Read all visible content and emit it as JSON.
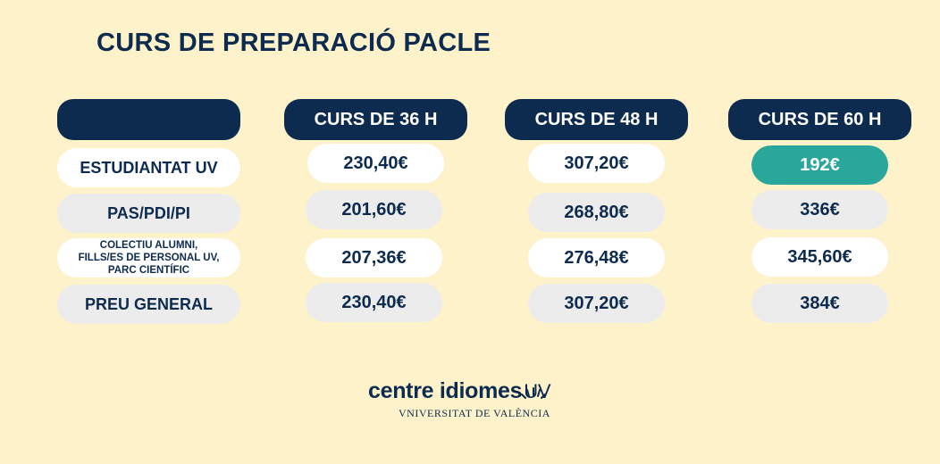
{
  "title": "CURS DE PREPARACIÓ PACLE",
  "columns": [
    "CURS DE 36 H",
    "CURS DE 48 H",
    "CURS DE 60 H"
  ],
  "rows": [
    {
      "label": "ESTUDIANTAT UV",
      "prices": [
        "230,40€",
        "307,20€",
        "192€"
      ]
    },
    {
      "label": "PAS/PDI/PI",
      "prices": [
        "201,60€",
        "268,80€",
        "336€"
      ]
    },
    {
      "label": "COLECTIU ALUMNI,\nFILLS/ES DE PERSONAL UV,\nPARC CIENTÍFIC",
      "prices": [
        "207,36€",
        "276,48€",
        "345,60€"
      ]
    },
    {
      "label": "PREU GENERAL",
      "prices": [
        "230,40€",
        "307,20€",
        "384€"
      ]
    }
  ],
  "colors": {
    "navy": "#0d2b4e",
    "background": "#fdf2c9",
    "highlight": "#2aa79b"
  },
  "logo": {
    "main": "centre idiomes",
    "suffix": "UV",
    "sub": "VNIVERSITAT DE VALÈNCIA",
    "icon": "sun-icon"
  }
}
